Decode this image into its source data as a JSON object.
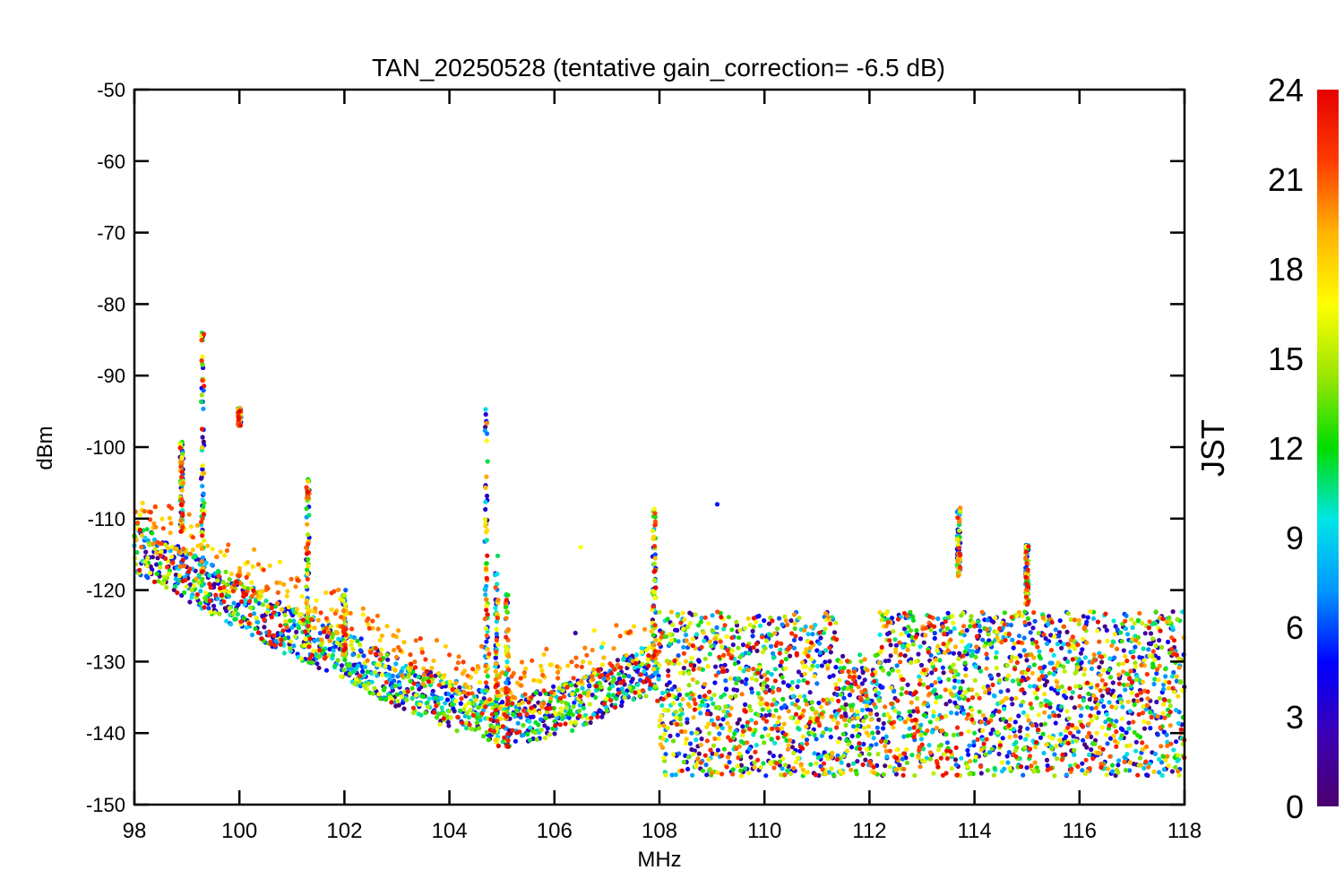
{
  "chart_data": {
    "type": "scatter",
    "title": "TAN_20250528 (tentative gain_correction= -6.5 dB)",
    "xlabel": "MHz",
    "ylabel": "dBm",
    "xlim": [
      98,
      118
    ],
    "ylim": [
      -150,
      -50
    ],
    "xticks": [
      98,
      100,
      102,
      104,
      106,
      108,
      110,
      112,
      114,
      116,
      118
    ],
    "yticks": [
      -50,
      -60,
      -70,
      -80,
      -90,
      -100,
      -110,
      -120,
      -130,
      -140,
      -150
    ],
    "grid": false,
    "marker": "star",
    "colorbar": {
      "label": "JST",
      "range": [
        0,
        24
      ],
      "ticks": [
        0,
        3,
        6,
        9,
        12,
        15,
        18,
        21,
        24
      ],
      "colormap": "rainbow",
      "colors": [
        "#4b006e",
        "#3c00b4",
        "#0000ff",
        "#0096ff",
        "#00e6e6",
        "#00dc00",
        "#9be600",
        "#ffff00",
        "#ffb400",
        "#ff3c00",
        "#e60000"
      ]
    },
    "noise_floor_mhz_dbm": [
      [
        98.0,
        -115
      ],
      [
        99.0,
        -119
      ],
      [
        100.0,
        -123
      ],
      [
        101.0,
        -127
      ],
      [
        102.0,
        -130
      ],
      [
        103.0,
        -134
      ],
      [
        104.0,
        -137
      ],
      [
        104.9,
        -139
      ],
      [
        105.0,
        -140
      ],
      [
        105.5,
        -139
      ],
      [
        106.0,
        -138
      ],
      [
        106.5,
        -137
      ],
      [
        107.0,
        -135
      ],
      [
        107.5,
        -133
      ],
      [
        107.9,
        -132
      ],
      [
        108.0,
        -135
      ],
      [
        110.0,
        -134
      ],
      [
        111.4,
        -134
      ],
      [
        111.8,
        -136
      ],
      [
        112.2,
        -134
      ],
      [
        114.0,
        -134
      ],
      [
        116.0,
        -134
      ],
      [
        117.2,
        -135
      ],
      [
        118.0,
        -136
      ]
    ],
    "band_108_118": {
      "spread_top_dbm": -123,
      "spread_bottom_dbm": -146
    },
    "peaks": [
      {
        "mhz": 99.3,
        "top_dbm": -84,
        "bottom_dbm": -118
      },
      {
        "mhz": 98.9,
        "top_dbm": -99,
        "bottom_dbm": -112
      },
      {
        "mhz": 100.0,
        "top_dbm": -94.5,
        "bottom_dbm": -97
      },
      {
        "mhz": 101.3,
        "top_dbm": -104,
        "bottom_dbm": -128
      },
      {
        "mhz": 102.0,
        "top_dbm": -120,
        "bottom_dbm": -130
      },
      {
        "mhz": 104.7,
        "top_dbm": -94.5,
        "bottom_dbm": -136
      },
      {
        "mhz": 104.9,
        "top_dbm": -115,
        "bottom_dbm": -141
      },
      {
        "mhz": 105.1,
        "top_dbm": -120,
        "bottom_dbm": -142
      },
      {
        "mhz": 107.9,
        "top_dbm": -108.5,
        "bottom_dbm": -132
      },
      {
        "mhz": 113.7,
        "top_dbm": -108.5,
        "bottom_dbm": -118
      },
      {
        "mhz": 115.0,
        "top_dbm": -113.5,
        "bottom_dbm": -122
      }
    ],
    "outliers_mhz_dbm": [
      [
        106.5,
        -114
      ],
      [
        109.1,
        -108
      ],
      [
        106.4,
        -126
      ],
      [
        106.9,
        -128
      ],
      [
        105.8,
        -129
      ]
    ]
  }
}
